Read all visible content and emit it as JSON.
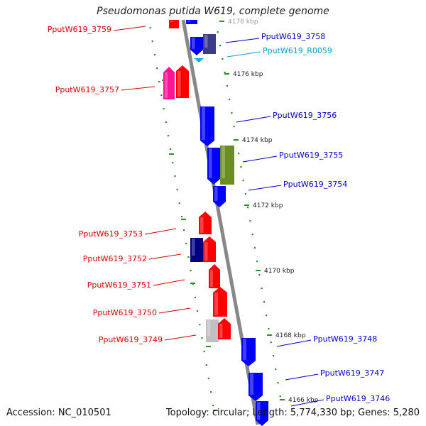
{
  "title": "Pseudomonas putida W619, complete genome",
  "footer": {
    "accession": "Accession: NC_010501",
    "summary": "Topology: circular; Length: 5,774,330 bp; Genes: 5,280"
  },
  "colors": {
    "backbone": "#888888",
    "ruler": "#2e8b2e",
    "forward_gene": "#ff0000",
    "reverse_gene": "#0000ff",
    "rna": "#00aadd",
    "label_forward": "#d40000",
    "label_reverse": "#0000cc",
    "label_rna": "#00a0d0",
    "label_kbp": "#222222"
  },
  "kbp_marks": [
    {
      "label": "4178 kbp",
      "faded": true
    },
    {
      "label": "4176 kbp"
    },
    {
      "label": "4174 kbp"
    },
    {
      "label": "4172 kbp"
    },
    {
      "label": "4170 kbp"
    },
    {
      "label": "4168 kbp"
    },
    {
      "label": "4166 kbp"
    }
  ],
  "gene_labels": [
    {
      "text": "PputW619_3759",
      "kind": "forward"
    },
    {
      "text": "PputW619_3758",
      "kind": "reverse"
    },
    {
      "text": "PputW619_R0059",
      "kind": "rna"
    },
    {
      "text": "PputW619_3757",
      "kind": "forward"
    },
    {
      "text": "PputW619_3756",
      "kind": "reverse"
    },
    {
      "text": "PputW619_3755",
      "kind": "reverse"
    },
    {
      "text": "PputW619_3754",
      "kind": "reverse"
    },
    {
      "text": "PputW619_3753",
      "kind": "forward"
    },
    {
      "text": "PputW619_3752",
      "kind": "forward"
    },
    {
      "text": "PputW619_3751",
      "kind": "forward"
    },
    {
      "text": "PputW619_3750",
      "kind": "forward"
    },
    {
      "text": "PputW619_3749",
      "kind": "forward"
    },
    {
      "text": "PputW619_3748",
      "kind": "reverse"
    },
    {
      "text": "PputW619_3747",
      "kind": "reverse"
    },
    {
      "text": "PputW619_3746",
      "kind": "reverse"
    }
  ],
  "genes": [
    {
      "name": "gene-3759-top",
      "strand": "forward",
      "color": "#ff0000"
    },
    {
      "name": "gene-3758-top",
      "strand": "reverse",
      "color": "#0000ff"
    },
    {
      "name": "gene-3758-blue",
      "strand": "reverse",
      "color": "#0000ff"
    },
    {
      "name": "gene-3758-slate",
      "strand": "reverse",
      "color": "#3b3b8a"
    },
    {
      "name": "rna-r0059",
      "strand": "reverse",
      "color": "#00aadd"
    },
    {
      "name": "gene-3757-magenta",
      "strand": "forward",
      "color": "#ff1493"
    },
    {
      "name": "gene-3757-red",
      "strand": "forward",
      "color": "#ff0000"
    },
    {
      "name": "gene-3756",
      "strand": "reverse",
      "color": "#0000ff"
    },
    {
      "name": "gene-3755-blue",
      "strand": "reverse",
      "color": "#0000ff"
    },
    {
      "name": "gene-3755-olive",
      "strand": "reverse",
      "color": "#6b8e23"
    },
    {
      "name": "gene-3754",
      "strand": "reverse",
      "color": "#0000ff"
    },
    {
      "name": "gene-3753",
      "strand": "forward",
      "color": "#ff0000"
    },
    {
      "name": "gene-3752-navy",
      "strand": "reverse",
      "color": "#000080"
    },
    {
      "name": "gene-3752-red",
      "strand": "forward",
      "color": "#ff0000"
    },
    {
      "name": "gene-3751",
      "strand": "forward",
      "color": "#ff0000"
    },
    {
      "name": "gene-3750",
      "strand": "forward",
      "color": "#ff0000"
    },
    {
      "name": "gene-3749-grey",
      "strand": "forward",
      "color": "#c0c0c0"
    },
    {
      "name": "gene-3749-red",
      "strand": "forward",
      "color": "#ff0000"
    },
    {
      "name": "gene-3748",
      "strand": "reverse",
      "color": "#0000ff"
    },
    {
      "name": "gene-3747",
      "strand": "reverse",
      "color": "#0000ff"
    },
    {
      "name": "gene-3746",
      "strand": "reverse",
      "color": "#0000ff"
    }
  ]
}
